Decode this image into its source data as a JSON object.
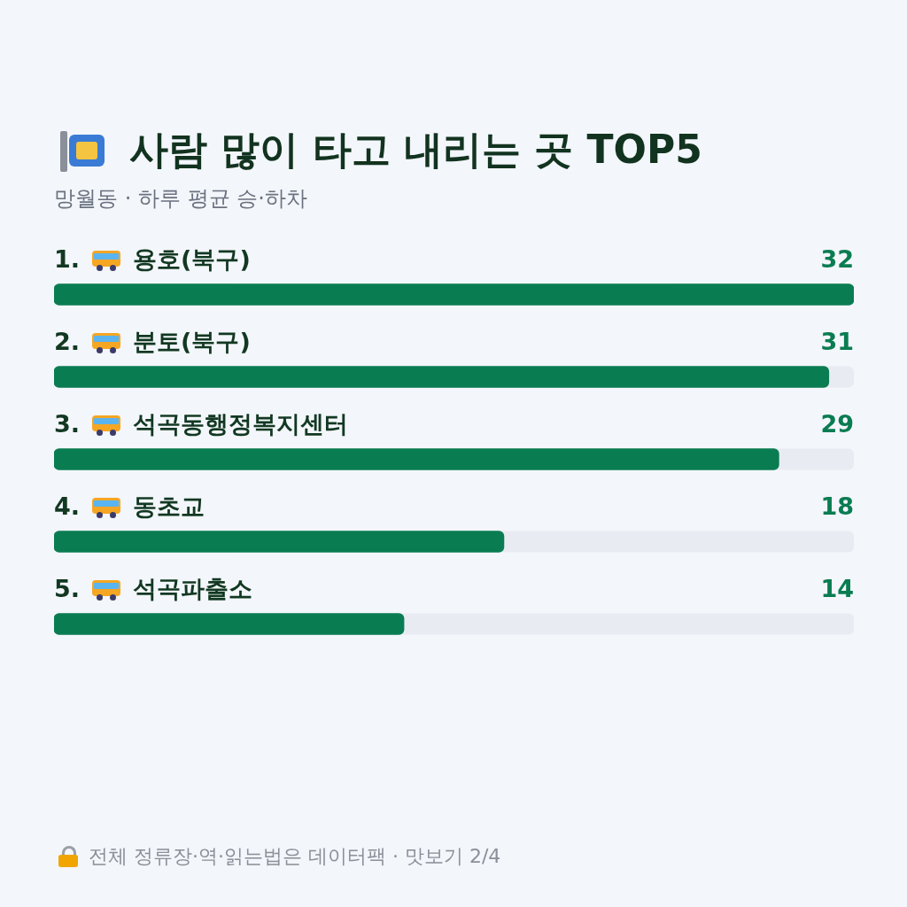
{
  "chart_data": {
    "type": "bar",
    "orientation": "horizontal",
    "title": "사람 많이 타고 내리는 곳 TOP5",
    "subtitle": "망월동 · 하루 평균 승·하차",
    "categories": [
      "1. 용호(북구)",
      "2. 분토(북구)",
      "3. 석곡동행정복지센터",
      "4. 동초교",
      "5. 석곡파출소"
    ],
    "values": [
      32,
      31,
      29,
      18,
      14
    ],
    "color": "#0a7c52",
    "data_labels": true,
    "legend": false,
    "annotations": [
      "전체 정류장·역·읽는법은 데이터팩 · 맛보기 2/4"
    ]
  }
}
